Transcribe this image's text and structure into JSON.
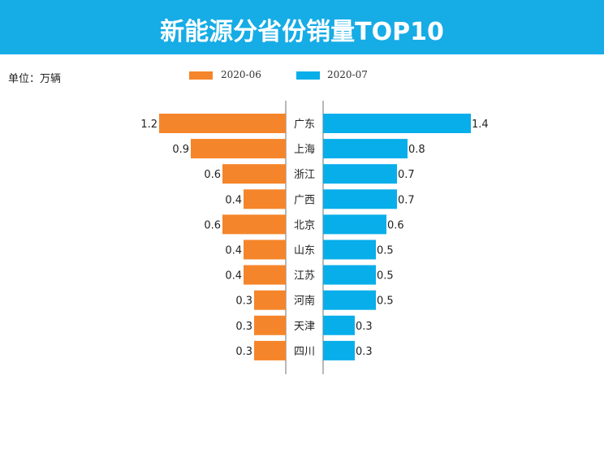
{
  "header": {
    "title": "新能源分省份销量TOP10"
  },
  "unit_label": "单位：万辆",
  "chart_data": {
    "type": "bar",
    "orientation": "horizontal-butterfly",
    "title": "新能源分省份销量TOP10",
    "unit": "单位：万辆",
    "categories": [
      "广东",
      "上海",
      "浙江",
      "广西",
      "北京",
      "山东",
      "江苏",
      "河南",
      "天津",
      "四川"
    ],
    "series": [
      {
        "name": "2020-06",
        "color": "#f5852a",
        "side": "left",
        "values": [
          1.2,
          0.9,
          0.6,
          0.4,
          0.6,
          0.4,
          0.4,
          0.3,
          0.3,
          0.3
        ]
      },
      {
        "name": "2020-07",
        "color": "#08aeea",
        "side": "right",
        "values": [
          1.4,
          0.8,
          0.7,
          0.7,
          0.6,
          0.5,
          0.5,
          0.5,
          0.3,
          0.3
        ]
      }
    ],
    "legend": "top-center",
    "grid": false
  }
}
